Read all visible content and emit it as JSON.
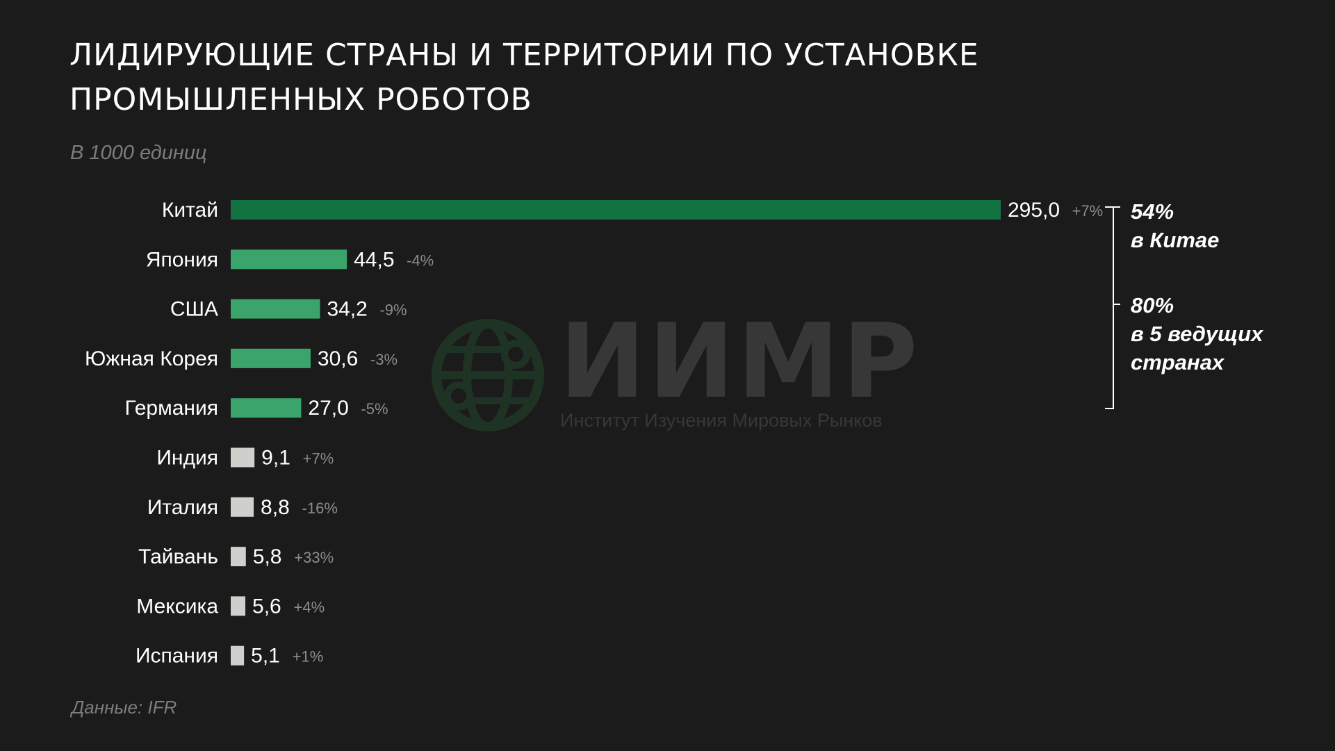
{
  "title_lines": [
    "ЛИДИРУЮЩИЕ СТРАНЫ И ТЕРРИТОРИИ ПО УСТАНОВКЕ",
    "ПРОМЫШЛЕННЫХ РОБОТОВ"
  ],
  "subtitle": "В 1000 единиц",
  "source": "Данные: IFR",
  "watermark": {
    "name": "ИИМР",
    "tagline": "Институт Изучения Мировых Рынков"
  },
  "annotations": [
    {
      "pct": "54%",
      "text": "в Китае"
    },
    {
      "pct": "80%",
      "text_lines": [
        "в 5 ведущих",
        "странах"
      ]
    }
  ],
  "colors": {
    "background": "#1b1b1b",
    "china": "#137241",
    "top5": "#3aa46b",
    "others": "#cfcfcb",
    "change_text": "#8c8c8c"
  },
  "chart_data": {
    "type": "bar",
    "orientation": "horizontal",
    "unit": "В 1000 единиц",
    "categories": [
      "Китай",
      "Япония",
      "США",
      "Южная Корея",
      "Германия",
      "Индия",
      "Италия",
      "Тайвань",
      "Мексика",
      "Испания"
    ],
    "values": [
      295.0,
      44.5,
      34.2,
      30.6,
      27.0,
      9.1,
      8.8,
      5.8,
      5.6,
      5.1
    ],
    "value_labels": [
      "295,0",
      "44,5",
      "34,2",
      "30,6",
      "27,0",
      "9,1",
      "8,8",
      "5,8",
      "5,6",
      "5,1"
    ],
    "changes": [
      "+7%",
      "-4%",
      "-9%",
      "-3%",
      "-5%",
      "+7%",
      "-16%",
      "+33%",
      "+4%",
      "+1%"
    ],
    "groups": [
      "china",
      "top5",
      "top5",
      "top5",
      "top5",
      "others",
      "others",
      "others",
      "others",
      "others"
    ],
    "xlim": [
      0,
      295
    ]
  }
}
